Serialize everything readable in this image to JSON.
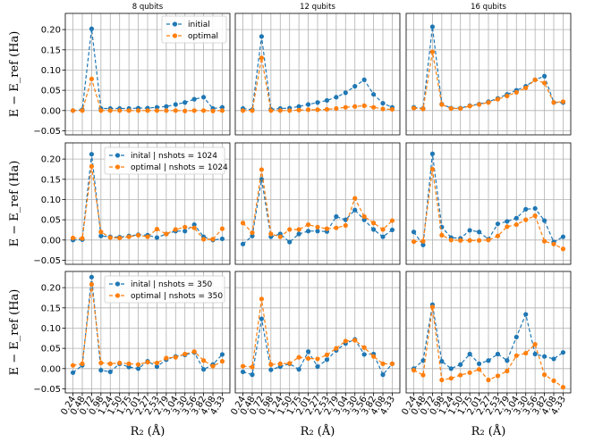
{
  "chart_data": {
    "type": "line",
    "ylabel": "E − E_ref (Ha)",
    "xlabel": "R₂ (Å)",
    "ylim": [
      -0.06,
      0.24
    ],
    "yticks": [
      "0.20",
      "0.15",
      "0.10",
      "0.05",
      "0.00",
      "−0.05"
    ],
    "ytick_values": [
      0.2,
      0.15,
      0.1,
      0.05,
      0.0,
      -0.05
    ],
    "x_labels": [
      "0.24",
      "0.48",
      "0.72",
      "0.98",
      "1.24",
      "1.50",
      "1.75",
      "2.01",
      "2.27",
      "2.53",
      "2.79",
      "3.04",
      "3.30",
      "3.56",
      "3.82",
      "4.08",
      "4.33"
    ],
    "column_titles": [
      "8 qubits",
      "12 qubits",
      "16 qubits"
    ],
    "colors": {
      "initial": "#1f77b4",
      "optimal": "#ff7f0e",
      "grid": "#b0b0b0"
    },
    "rows": [
      {
        "legend": [
          "initial",
          "optimal"
        ],
        "panels": [
          {
            "series": [
              {
                "name": "initial",
                "values": [
                  0.0,
                  0.002,
                  0.202,
                  0.005,
                  0.005,
                  0.005,
                  0.005,
                  0.006,
                  0.006,
                  0.008,
                  0.01,
                  0.015,
                  0.02,
                  0.028,
                  0.033,
                  0.005,
                  0.008
                ]
              },
              {
                "name": "optimal",
                "values": [
                  0.0,
                  0.0,
                  0.078,
                  0.0,
                  0.0,
                  0.0,
                  0.0,
                  0.0,
                  0.0,
                  0.0,
                  0.0,
                  0.0,
                  -0.001,
                  0.0,
                  0.0,
                  -0.001,
                  0.0
                ]
              }
            ]
          },
          {
            "series": [
              {
                "name": "initial",
                "values": [
                  0.005,
                  0.002,
                  0.183,
                  0.003,
                  0.005,
                  0.006,
                  0.01,
                  0.015,
                  0.02,
                  0.025,
                  0.033,
                  0.044,
                  0.06,
                  0.076,
                  0.04,
                  0.018,
                  0.008
                ]
              },
              {
                "name": "optimal",
                "values": [
                  0.0,
                  0.0,
                  0.13,
                  0.0,
                  0.0,
                  0.0,
                  0.001,
                  0.002,
                  0.002,
                  0.003,
                  0.005,
                  0.008,
                  0.01,
                  0.012,
                  0.008,
                  0.004,
                  0.003
                ]
              }
            ]
          },
          {
            "series": [
              {
                "name": "initial",
                "values": [
                  0.008,
                  0.005,
                  0.207,
                  0.016,
                  0.006,
                  0.006,
                  0.012,
                  0.016,
                  0.022,
                  0.03,
                  0.04,
                  0.05,
                  0.06,
                  0.076,
                  0.085,
                  0.02,
                  0.02
                ]
              },
              {
                "name": "optimal",
                "values": [
                  0.006,
                  0.004,
                  0.145,
                  0.015,
                  0.005,
                  0.005,
                  0.011,
                  0.015,
                  0.02,
                  0.028,
                  0.036,
                  0.045,
                  0.056,
                  0.076,
                  0.068,
                  0.02,
                  0.022
                ]
              }
            ]
          }
        ]
      },
      {
        "legend": [
          "inital | nshots = 1024",
          "optimal | nshots = 1024"
        ],
        "panels": [
          {
            "series": [
              {
                "name": "inital | nshots = 1024",
                "values": [
                  0.0,
                  0.001,
                  0.212,
                  0.01,
                  0.008,
                  0.007,
                  0.01,
                  0.013,
                  0.012,
                  0.006,
                  0.015,
                  0.022,
                  0.022,
                  0.038,
                  0.008,
                  0.0,
                  0.003
                ]
              },
              {
                "name": "optimal | nshots = 1024",
                "values": [
                  0.005,
                  0.004,
                  0.182,
                  0.02,
                  0.006,
                  0.005,
                  0.008,
                  0.012,
                  0.008,
                  0.027,
                  0.015,
                  0.026,
                  0.032,
                  0.03,
                  0.002,
                  0.002,
                  0.028
                ]
              }
            ]
          },
          {
            "series": [
              {
                "name": "inital | nshots = 1024",
                "values": [
                  -0.01,
                  0.01,
                  0.15,
                  0.008,
                  0.015,
                  -0.005,
                  0.015,
                  0.022,
                  0.022,
                  0.021,
                  0.058,
                  0.05,
                  0.074,
                  0.05,
                  0.026,
                  0.008,
                  0.025
                ]
              },
              {
                "name": "optimal | nshots = 1024",
                "values": [
                  0.042,
                  0.018,
                  0.174,
                  0.015,
                  0.008,
                  0.026,
                  0.026,
                  0.038,
                  0.032,
                  0.028,
                  0.03,
                  0.036,
                  0.103,
                  0.058,
                  0.042,
                  0.026,
                  0.048
                ]
              }
            ]
          },
          {
            "series": [
              {
                "name": "inital | nshots = 1024",
                "values": [
                  0.02,
                  -0.012,
                  0.213,
                  0.032,
                  0.006,
                  0.004,
                  0.024,
                  0.02,
                  0.002,
                  0.04,
                  0.046,
                  0.054,
                  0.076,
                  0.078,
                  0.048,
                  -0.005,
                  0.008
                ]
              },
              {
                "name": "optimal | nshots = 1024",
                "values": [
                  -0.004,
                  -0.003,
                  0.175,
                  0.012,
                  0.0,
                  -0.001,
                  -0.001,
                  -0.001,
                  0.0,
                  0.01,
                  0.033,
                  0.038,
                  0.05,
                  0.06,
                  -0.003,
                  -0.01,
                  -0.022
                ]
              }
            ]
          }
        ]
      },
      {
        "legend": [
          "inital | nshots = 350",
          "optimal | nshots = 350"
        ],
        "panels": [
          {
            "series": [
              {
                "name": "inital | nshots = 350",
                "values": [
                  -0.01,
                  0.008,
                  0.226,
                  -0.004,
                  -0.008,
                  0.012,
                  0.004,
                  0.0,
                  0.018,
                  0.005,
                  0.022,
                  0.03,
                  0.034,
                  0.04,
                  -0.002,
                  0.01,
                  0.035
                ]
              },
              {
                "name": "optimal | nshots = 350",
                "values": [
                  0.008,
                  0.012,
                  0.208,
                  0.014,
                  0.012,
                  0.014,
                  0.012,
                  0.01,
                  0.016,
                  0.014,
                  0.026,
                  0.028,
                  0.036,
                  0.042,
                  0.02,
                  0.006,
                  0.018
                ]
              }
            ]
          },
          {
            "series": [
              {
                "name": "inital | nshots = 350",
                "values": [
                  -0.008,
                  -0.015,
                  0.123,
                  -0.003,
                  0.005,
                  0.012,
                  -0.002,
                  0.042,
                  0.005,
                  0.022,
                  0.045,
                  0.062,
                  0.072,
                  0.035,
                  0.036,
                  -0.015,
                  0.012
                ]
              },
              {
                "name": "optimal | nshots = 350",
                "values": [
                  0.006,
                  0.004,
                  0.172,
                  0.01,
                  0.012,
                  0.013,
                  0.028,
                  0.025,
                  0.024,
                  0.034,
                  0.05,
                  0.068,
                  0.07,
                  0.052,
                  0.03,
                  0.012,
                  0.012
                ]
              }
            ]
          },
          {
            "series": [
              {
                "name": "inital | nshots = 350",
                "values": [
                  0.0,
                  0.02,
                  0.158,
                  0.018,
                  0.0,
                  0.01,
                  0.036,
                  0.012,
                  0.02,
                  0.036,
                  0.02,
                  0.078,
                  0.134,
                  0.036,
                  0.03,
                  0.024,
                  0.04
                ]
              },
              {
                "name": "optimal | nshots = 350",
                "values": [
                  -0.004,
                  -0.016,
                  0.152,
                  -0.028,
                  -0.024,
                  -0.016,
                  -0.01,
                  -0.002,
                  -0.028,
                  -0.018,
                  -0.006,
                  0.032,
                  0.038,
                  0.06,
                  -0.015,
                  -0.03,
                  -0.046
                ]
              }
            ]
          }
        ]
      }
    ]
  }
}
